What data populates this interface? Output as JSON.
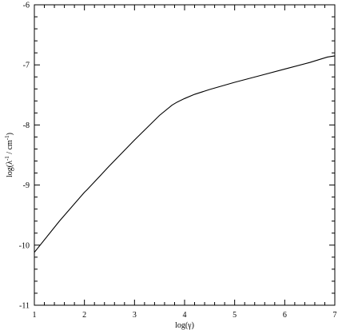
{
  "chart_data": {
    "type": "line",
    "title": "",
    "xlabel": "log(γ)",
    "ylabel_parts": {
      "prefix": "log(λ",
      "sup1": "-1",
      "middle": " / cm",
      "sup2": "-1",
      "suffix": ")"
    },
    "xlim": [
      1,
      7
    ],
    "ylim": [
      -11,
      -6
    ],
    "xticks": [
      1,
      2,
      3,
      4,
      5,
      6,
      7
    ],
    "yticks": [
      -11,
      -10,
      -9,
      -8,
      -7,
      -6
    ],
    "xtick_labels": [
      "1",
      "2",
      "3",
      "4",
      "5",
      "6",
      "7"
    ],
    "ytick_labels": [
      "-11",
      "-10",
      "-9",
      "-8",
      "-7",
      "-6"
    ],
    "minor_ticks_per_major": 4,
    "grid": false,
    "line_color": "#000000",
    "series": [
      {
        "x": [
          1.0,
          1.5,
          2.0,
          2.05,
          2.5,
          3.0,
          3.5,
          3.75,
          3.85,
          4.0,
          4.2,
          4.5,
          5.0,
          5.5,
          6.0,
          6.5,
          6.85,
          7.0
        ],
        "y": [
          -10.12,
          -9.6,
          -9.12,
          -9.08,
          -8.68,
          -8.25,
          -7.84,
          -7.67,
          -7.62,
          -7.56,
          -7.49,
          -7.41,
          -7.29,
          -7.18,
          -7.07,
          -6.96,
          -6.87,
          -6.85
        ]
      }
    ]
  }
}
